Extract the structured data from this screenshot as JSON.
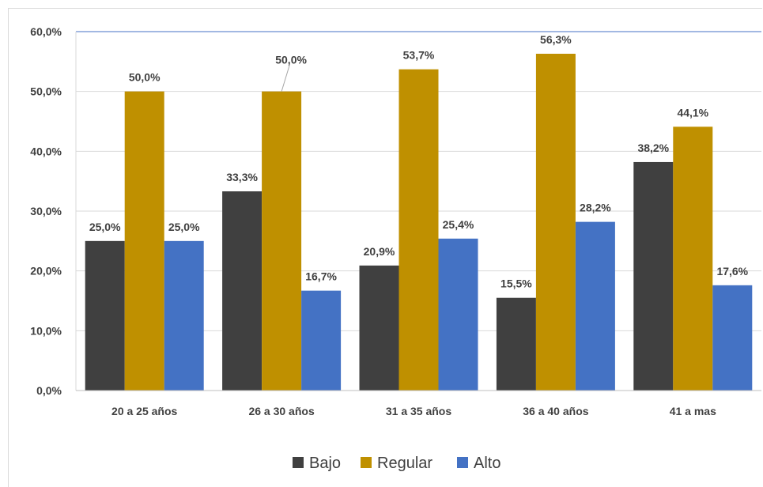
{
  "chart_data": {
    "type": "bar",
    "categories": [
      "20 a 25 años",
      "26 a 30 años",
      "31 a 35 años",
      "36 a 40 años",
      "41 a mas"
    ],
    "series": [
      {
        "name": "Bajo",
        "color": "#404040",
        "values": [
          25.0,
          33.3,
          20.9,
          15.5,
          38.2
        ],
        "labels": [
          "25,0%",
          "33,3%",
          "20,9%",
          "15,5%",
          "38,2%"
        ]
      },
      {
        "name": "Regular",
        "color": "#bf9000",
        "values": [
          50.0,
          50.0,
          53.7,
          56.3,
          44.1
        ],
        "labels": [
          "50,0%",
          "50,0%",
          "53,7%",
          "56,3%",
          "44,1%"
        ]
      },
      {
        "name": "Alto",
        "color": "#4472c4",
        "values": [
          25.0,
          16.7,
          25.4,
          28.2,
          17.6
        ],
        "labels": [
          "25,0%",
          "16,7%",
          "25,4%",
          "28,2%",
          "17,6%"
        ]
      }
    ],
    "yticks": [
      "0,0%",
      "10,0%",
      "20,0%",
      "30,0%",
      "40,0%",
      "50,0%",
      "60,0%"
    ],
    "ylim": [
      0,
      60
    ],
    "grid": true,
    "legend_position": "bottom"
  }
}
